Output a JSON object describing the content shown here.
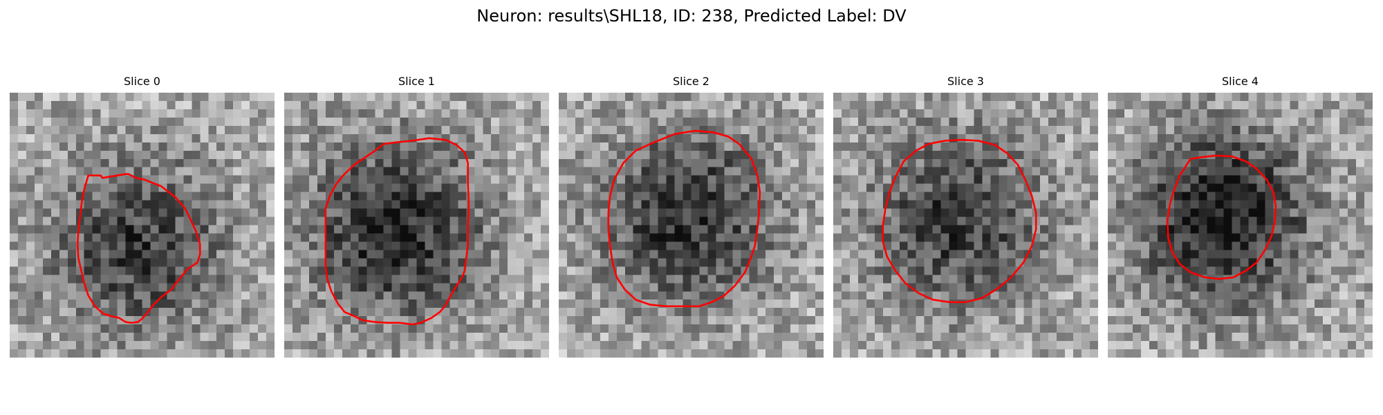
{
  "figure": {
    "title": "Neuron: results\\SHL18, ID: 238, Predicted Label: DV"
  },
  "colors": {
    "contour": "#ff0000",
    "background": "#ffffff"
  },
  "image_grid": 32,
  "panels": [
    {
      "title": "Slice 0",
      "contour": [
        [
          9.5,
          10
        ],
        [
          11,
          10
        ],
        [
          11.2,
          10.3
        ],
        [
          13,
          10
        ],
        [
          14.3,
          9.8
        ],
        [
          15.3,
          10.3
        ],
        [
          16.3,
          10.5
        ],
        [
          18.3,
          11.3
        ],
        [
          20,
          12.6
        ],
        [
          21.2,
          14
        ],
        [
          21.7,
          15
        ],
        [
          22.5,
          16.7
        ],
        [
          23,
          18.3
        ],
        [
          23,
          19.5
        ],
        [
          22.7,
          20.5
        ],
        [
          21.5,
          21.3
        ],
        [
          20.5,
          22.5
        ],
        [
          19.5,
          23.8
        ],
        [
          18.3,
          24.7
        ],
        [
          17.3,
          25.7
        ],
        [
          16.7,
          26.5
        ],
        [
          16,
          27.3
        ],
        [
          15.5,
          27.7
        ],
        [
          14.7,
          27.8
        ],
        [
          14,
          27.7
        ],
        [
          13.2,
          27.2
        ],
        [
          12.3,
          27
        ],
        [
          11.3,
          26.7
        ],
        [
          10.3,
          25.8
        ],
        [
          9.5,
          24.5
        ],
        [
          9,
          23
        ],
        [
          8.7,
          21.7
        ],
        [
          8.3,
          20
        ],
        [
          8.2,
          18.3
        ],
        [
          8.3,
          16.7
        ],
        [
          8.5,
          15
        ],
        [
          8.7,
          13.3
        ],
        [
          9,
          11.7
        ]
      ],
      "center": [
        15.5,
        18.5
      ],
      "dark": 0.45
    },
    {
      "title": "Slice 1",
      "contour": [
        [
          11,
          7
        ],
        [
          12,
          6.2
        ],
        [
          13.5,
          6
        ],
        [
          15.5,
          5.8
        ],
        [
          17.5,
          5.5
        ],
        [
          19.5,
          5.7
        ],
        [
          20.8,
          6.3
        ],
        [
          21.8,
          7.2
        ],
        [
          22.2,
          8.5
        ],
        [
          22.2,
          11
        ],
        [
          22.3,
          13.5
        ],
        [
          22.2,
          16
        ],
        [
          22.2,
          18.3
        ],
        [
          22,
          20
        ],
        [
          21.8,
          21.5
        ],
        [
          21.5,
          22.3
        ],
        [
          20.7,
          23.5
        ],
        [
          20,
          24.7
        ],
        [
          19.5,
          25.7
        ],
        [
          18.8,
          26.5
        ],
        [
          17.8,
          27.2
        ],
        [
          16.5,
          27.8
        ],
        [
          15.5,
          28
        ],
        [
          14,
          27.8
        ],
        [
          12.5,
          27.8
        ],
        [
          11,
          27.7
        ],
        [
          9.5,
          27.5
        ],
        [
          8.5,
          27
        ],
        [
          7.3,
          26.5
        ],
        [
          6.5,
          25.5
        ],
        [
          5.7,
          24
        ],
        [
          5.2,
          22.5
        ],
        [
          5,
          21
        ],
        [
          5,
          19.5
        ],
        [
          5,
          18
        ],
        [
          5,
          16
        ],
        [
          5,
          14
        ],
        [
          5.5,
          12.5
        ],
        [
          6.3,
          11
        ],
        [
          7.3,
          9.8
        ],
        [
          8.5,
          8.7
        ],
        [
          9.8,
          7.8
        ]
      ],
      "center": [
        13.5,
        16.5
      ],
      "dark": 0.55
    },
    {
      "title": "Slice 2",
      "contour": [
        [
          7.8,
          8.5
        ],
        [
          9.3,
          7
        ],
        [
          11.5,
          6
        ],
        [
          14,
          5
        ],
        [
          16.5,
          4.6
        ],
        [
          18.7,
          4.8
        ],
        [
          20.5,
          5.3
        ],
        [
          21.8,
          6.2
        ],
        [
          23.3,
          8
        ],
        [
          24,
          10
        ],
        [
          24.3,
          12
        ],
        [
          24.2,
          14.5
        ],
        [
          24,
          16.5
        ],
        [
          23.7,
          18.5
        ],
        [
          23.2,
          20
        ],
        [
          22.5,
          21.7
        ],
        [
          21.3,
          23.3
        ],
        [
          20,
          24.5
        ],
        [
          18.5,
          25.3
        ],
        [
          17,
          25.8
        ],
        [
          15,
          25.8
        ],
        [
          13,
          25.8
        ],
        [
          11,
          25.6
        ],
        [
          9.3,
          25
        ],
        [
          8,
          23.8
        ],
        [
          7,
          22.3
        ],
        [
          6.5,
          20.5
        ],
        [
          6.2,
          18.5
        ],
        [
          6,
          16.5
        ],
        [
          6,
          14.5
        ],
        [
          6.2,
          12.5
        ],
        [
          6.7,
          10.5
        ]
      ],
      "center": [
        15.5,
        15
      ],
      "dark": 0.5
    },
    {
      "title": "Slice 3",
      "contour": [
        [
          10,
          7
        ],
        [
          11.5,
          6.2
        ],
        [
          13.5,
          5.8
        ],
        [
          15.5,
          5.7
        ],
        [
          17.5,
          5.8
        ],
        [
          19.5,
          6.3
        ],
        [
          21,
          7.3
        ],
        [
          22.3,
          8.7
        ],
        [
          23.2,
          10.5
        ],
        [
          24,
          12.5
        ],
        [
          24.5,
          14.5
        ],
        [
          24.5,
          16.5
        ],
        [
          24,
          18.5
        ],
        [
          23,
          20.5
        ],
        [
          21.5,
          22.3
        ],
        [
          19.8,
          23.7
        ],
        [
          18,
          24.8
        ],
        [
          16,
          25.3
        ],
        [
          14,
          25.3
        ],
        [
          12,
          25
        ],
        [
          10.3,
          24.2
        ],
        [
          8.7,
          23
        ],
        [
          7.5,
          21.5
        ],
        [
          6.5,
          19.8
        ],
        [
          6,
          18
        ],
        [
          6,
          16
        ],
        [
          6.3,
          14
        ],
        [
          6.8,
          12
        ],
        [
          7.5,
          10.2
        ],
        [
          8.5,
          8.3
        ]
      ],
      "center": [
        15,
        15.5
      ],
      "dark": 0.45
    },
    {
      "title": "Slice 4",
      "contour": [
        [
          10,
          8
        ],
        [
          11.3,
          7.8
        ],
        [
          13,
          7.6
        ],
        [
          15,
          7.7
        ],
        [
          16.7,
          8.3
        ],
        [
          18,
          9.2
        ],
        [
          19.2,
          10.5
        ],
        [
          20,
          12
        ],
        [
          20.3,
          13.7
        ],
        [
          20.2,
          15.5
        ],
        [
          19.8,
          17.3
        ],
        [
          19,
          19
        ],
        [
          18,
          20.5
        ],
        [
          16.7,
          21.5
        ],
        [
          15.2,
          22.3
        ],
        [
          13.5,
          22.5
        ],
        [
          11.7,
          22.3
        ],
        [
          10,
          21.7
        ],
        [
          8.7,
          20.7
        ],
        [
          7.8,
          19.3
        ],
        [
          7.3,
          17.5
        ],
        [
          7.2,
          15.5
        ],
        [
          7.5,
          13.5
        ],
        [
          8,
          11.8
        ],
        [
          8.7,
          10
        ]
      ],
      "center": [
        13.8,
        15
      ],
      "dark": 0.6
    }
  ]
}
